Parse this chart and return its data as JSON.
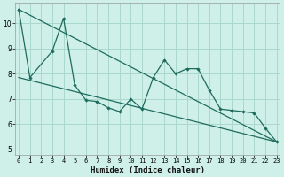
{
  "xlabel": "Humidex (Indice chaleur)",
  "background_color": "#cef0e8",
  "grid_color": "#aad8cc",
  "line_color": "#1f6b5e",
  "x_values": [
    0,
    1,
    2,
    3,
    4,
    5,
    6,
    7,
    8,
    9,
    10,
    11,
    12,
    13,
    14,
    15,
    16,
    17,
    18,
    19,
    20,
    21,
    22,
    23
  ],
  "series1": [
    10.55,
    7.85,
    null,
    8.9,
    10.2,
    7.55,
    6.95,
    6.9,
    6.65,
    6.5,
    7.0,
    6.6,
    7.85,
    8.55,
    8.0,
    8.2,
    8.2,
    7.35,
    6.6,
    6.55,
    6.5,
    6.45,
    5.85,
    5.3
  ],
  "line2_x": [
    0,
    23
  ],
  "line2_y": [
    10.55,
    5.3
  ],
  "line3_x": [
    0,
    23
  ],
  "line3_y": [
    7.85,
    5.3
  ],
  "ylim": [
    4.8,
    10.8
  ],
  "xlim": [
    -0.3,
    23.3
  ],
  "yticks": [
    5,
    6,
    7,
    8,
    9,
    10
  ],
  "xticks": [
    0,
    1,
    2,
    3,
    4,
    5,
    6,
    7,
    8,
    9,
    10,
    11,
    12,
    13,
    14,
    15,
    16,
    17,
    18,
    19,
    20,
    21,
    22,
    23
  ],
  "tick_fontsize": 5.5,
  "xlabel_fontsize": 6.5
}
